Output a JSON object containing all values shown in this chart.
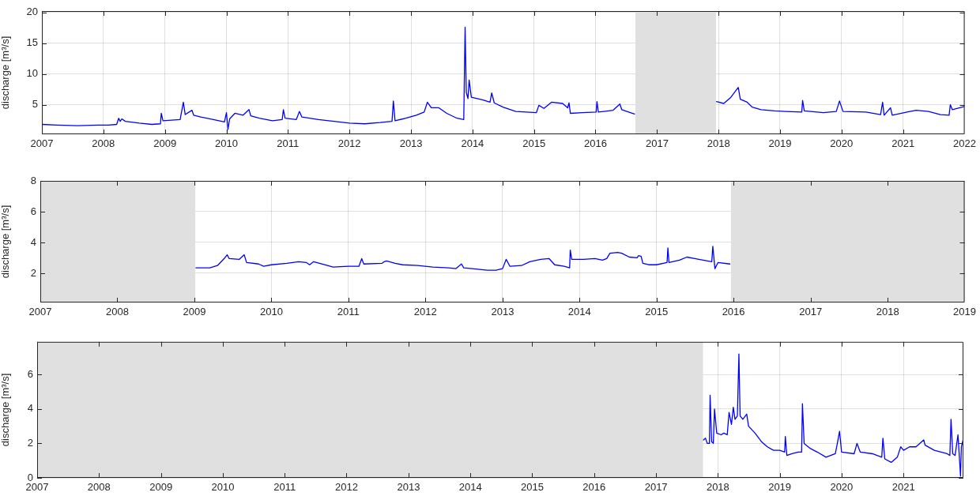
{
  "chart_data": [
    {
      "type": "line",
      "ylabel": "discharge [m³/s]",
      "marker": "none",
      "grid": true,
      "xlim": [
        "2007",
        "2022"
      ],
      "xticks": [
        "2007",
        "2008",
        "2009",
        "2010",
        "2011",
        "2012",
        "2013",
        "2014",
        "2015",
        "2016",
        "2017",
        "2018",
        "2019",
        "2020",
        "2021",
        "2022"
      ],
      "ylim": [
        0.2,
        20.2
      ],
      "yticks": [
        5,
        10,
        15,
        20
      ],
      "bands": [
        {
          "axis": "x",
          "from": "2016-08-25",
          "to": "2017-12-17",
          "color": "#e0e0e0"
        }
      ],
      "x": [
        "2007-01-01",
        "2007-04-01",
        "2007-08-01",
        "2007-12-01",
        "2008-02-01",
        "2008-03-20",
        "2008-04-01",
        "2008-04-10",
        "2008-04-20",
        "2008-05-10",
        "2008-08-01",
        "2008-10-15",
        "2008-12-05",
        "2008-12-10",
        "2008-12-20",
        "2009-04-01",
        "2009-04-20",
        "2009-05-01",
        "2009-06-10",
        "2009-06-20",
        "2009-08-01",
        "2009-10-15",
        "2009-12-20",
        "2010-01-01",
        "2010-01-10",
        "2010-01-20",
        "2010-02-20",
        "2010-04-10",
        "2010-05-15",
        "2010-05-25",
        "2010-07-15",
        "2010-10-01",
        "2010-11-28",
        "2010-12-05",
        "2010-12-15",
        "2011-02-20",
        "2011-03-10",
        "2011-03-25",
        "2011-07-01",
        "2011-10-01",
        "2012-01-01",
        "2012-04-01",
        "2012-07-01",
        "2012-09-10",
        "2012-09-18",
        "2012-09-28",
        "2012-12-01",
        "2013-02-01",
        "2013-03-20",
        "2013-04-08",
        "2013-05-01",
        "2013-06-15",
        "2013-08-01",
        "2013-10-01",
        "2013-11-10",
        "2013-11-18",
        "2013-11-25",
        "2013-12-05",
        "2013-12-12",
        "2013-12-25",
        "2014-03-01",
        "2014-04-15",
        "2014-04-25",
        "2014-05-10",
        "2014-07-01",
        "2014-09-15",
        "2015-01-15",
        "2015-01-30",
        "2015-03-01",
        "2015-04-15",
        "2015-06-20",
        "2015-07-20",
        "2015-07-28",
        "2015-08-05",
        "2015-10-15",
        "2016-01-05",
        "2016-01-10",
        "2016-01-18",
        "2016-04-15",
        "2016-05-25",
        "2016-06-05",
        "2016-08-20",
        "2017-05-01",
        "2017-12-20",
        "2018-02-01",
        "2018-03-15",
        "2018-04-28",
        "2018-05-10",
        "2018-06-20",
        "2018-07-20",
        "2018-09-10",
        "2018-12-01",
        "2019-02-01",
        "2019-05-10",
        "2019-05-15",
        "2019-05-25",
        "2019-09-15",
        "2019-12-01",
        "2019-12-20",
        "2020-01-10",
        "2020-05-25",
        "2020-08-20",
        "2020-09-01",
        "2020-09-10",
        "2020-10-18",
        "2020-10-28",
        "2021-02-10",
        "2021-03-20",
        "2021-06-01",
        "2021-08-10",
        "2021-10-01",
        "2021-10-08",
        "2021-10-20",
        "2021-12-30"
      ],
      "series": [
        {
          "color": "#0000ff",
          "values": [
            1.8,
            1.7,
            1.6,
            1.7,
            1.7,
            1.8,
            2.8,
            2.3,
            2.7,
            2.3,
            2.0,
            1.8,
            1.9,
            3.6,
            2.4,
            2.6,
            5.4,
            3.4,
            4.1,
            3.3,
            3.0,
            2.6,
            2.2,
            3.7,
            1.0,
            2.7,
            3.6,
            3.3,
            4.2,
            3.2,
            2.8,
            2.4,
            2.6,
            4.2,
            2.8,
            2.6,
            3.9,
            3.0,
            2.6,
            2.3,
            2.0,
            1.9,
            2.1,
            2.3,
            5.6,
            2.4,
            2.8,
            3.3,
            3.8,
            5.4,
            4.5,
            4.5,
            3.6,
            2.8,
            2.6,
            17.6,
            7.0,
            6.0,
            9.0,
            6.2,
            5.8,
            5.4,
            6.9,
            5.3,
            4.6,
            3.9,
            3.7,
            4.9,
            4.4,
            5.4,
            5.2,
            4.5,
            5.3,
            3.6,
            3.7,
            3.8,
            5.5,
            3.8,
            4.1,
            5.1,
            4.2,
            3.5,
            null,
            5.5,
            5.2,
            6.2,
            7.8,
            5.9,
            5.4,
            4.6,
            4.2,
            4.0,
            3.9,
            3.8,
            5.7,
            4.0,
            3.7,
            3.9,
            5.6,
            3.9,
            3.8,
            3.4,
            5.4,
            3.3,
            4.5,
            3.3,
            3.9,
            4.1,
            3.9,
            3.4,
            3.3,
            5.0,
            4.2,
            4.7
          ]
        }
      ]
    },
    {
      "type": "line",
      "ylabel": "discharge [m³/s]",
      "marker": "none",
      "grid": true,
      "xlim": [
        "2007",
        "2019"
      ],
      "xticks": [
        "2007",
        "2008",
        "2009",
        "2010",
        "2011",
        "2012",
        "2013",
        "2014",
        "2015",
        "2016",
        "2017",
        "2018",
        "2019"
      ],
      "ylim": [
        0.1,
        8
      ],
      "yticks": [
        2,
        4,
        6,
        8
      ],
      "bands": [
        {
          "axis": "x",
          "from": "2007-01-01",
          "to": "2009-01-05",
          "color": "#e0e0e0"
        },
        {
          "axis": "x",
          "from": "2015-12-20",
          "to": "2019-01-01",
          "color": "#e0e0e0"
        }
      ],
      "x": [
        "2009-01-08",
        "2009-03-15",
        "2009-04-20",
        "2009-05-25",
        "2009-06-05",
        "2009-06-15",
        "2009-08-01",
        "2009-08-25",
        "2009-09-05",
        "2009-11-01",
        "2009-11-25",
        "2010-01-01",
        "2010-03-15",
        "2010-05-10",
        "2010-06-15",
        "2010-07-01",
        "2010-07-20",
        "2010-09-10",
        "2010-10-20",
        "2011-01-01",
        "2011-02-20",
        "2011-03-05",
        "2011-03-15",
        "2011-06-10",
        "2011-06-20",
        "2011-07-01",
        "2011-08-10",
        "2011-09-15",
        "2011-11-25",
        "2012-02-05",
        "2012-04-20",
        "2012-05-25",
        "2012-06-20",
        "2012-07-01",
        "2012-08-10",
        "2012-10-20",
        "2012-12-01",
        "2013-01-01",
        "2013-01-18",
        "2013-02-05",
        "2013-04-01",
        "2013-05-10",
        "2013-07-01",
        "2013-08-10",
        "2013-09-05",
        "2013-10-20",
        "2013-11-15",
        "2013-11-18",
        "2013-11-25",
        "2014-01-20",
        "2014-03-15",
        "2014-04-20",
        "2014-05-10",
        "2014-05-25",
        "2014-07-01",
        "2014-07-20",
        "2014-08-25",
        "2014-10-01",
        "2014-10-08",
        "2014-10-20",
        "2014-10-28",
        "2014-11-25",
        "2015-01-01",
        "2015-02-20",
        "2015-02-24",
        "2015-03-01",
        "2015-04-20",
        "2015-05-25",
        "2015-07-01",
        "2015-08-10",
        "2015-09-20",
        "2015-09-25",
        "2015-10-05",
        "2015-10-20",
        "2015-12-15"
      ],
      "series": [
        {
          "color": "#0000ff",
          "values": [
            2.35,
            2.35,
            2.5,
            3.0,
            3.2,
            2.95,
            2.9,
            3.2,
            2.7,
            2.6,
            2.45,
            2.55,
            2.65,
            2.75,
            2.7,
            2.55,
            2.75,
            2.55,
            2.4,
            2.45,
            2.45,
            2.95,
            2.6,
            2.65,
            2.75,
            2.8,
            2.65,
            2.55,
            2.5,
            2.4,
            2.35,
            2.3,
            2.6,
            2.35,
            2.3,
            2.2,
            2.2,
            2.3,
            2.9,
            2.45,
            2.5,
            2.75,
            2.9,
            2.95,
            2.55,
            2.45,
            2.35,
            3.5,
            2.9,
            2.9,
            2.95,
            2.85,
            2.95,
            3.3,
            3.35,
            3.3,
            3.05,
            3.0,
            3.15,
            3.1,
            2.65,
            2.55,
            2.55,
            2.7,
            3.65,
            2.7,
            2.85,
            3.05,
            2.95,
            2.85,
            2.75,
            3.75,
            2.3,
            2.7,
            2.6
          ]
        }
      ]
    },
    {
      "type": "line",
      "ylabel": "discharge [m³/s]",
      "marker": "none",
      "grid": true,
      "xlim": [
        "2007",
        "2021-12-20"
      ],
      "xticks": [
        "2007",
        "2008",
        "2009",
        "2010",
        "2011",
        "2012",
        "2013",
        "2014",
        "2015",
        "2016",
        "2017",
        "2018",
        "2019",
        "2020",
        "2021"
      ],
      "ylim": [
        0,
        7.9
      ],
      "yticks": [
        0,
        2,
        4,
        6
      ],
      "bands": [
        {
          "axis": "x",
          "from": "2007-01-01",
          "to": "2017-10-05",
          "color": "#e0e0e0"
        }
      ],
      "x": [
        "2017-10-08",
        "2017-10-20",
        "2017-10-30",
        "2017-11-12",
        "2017-11-16",
        "2017-11-25",
        "2017-12-05",
        "2017-12-12",
        "2017-12-25",
        "2018-01-20",
        "2018-02-05",
        "2018-02-25",
        "2018-03-08",
        "2018-03-22",
        "2018-04-02",
        "2018-04-12",
        "2018-04-26",
        "2018-05-05",
        "2018-05-12",
        "2018-05-28",
        "2018-06-20",
        "2018-07-01",
        "2018-08-08",
        "2018-09-15",
        "2018-10-20",
        "2018-11-25",
        "2019-01-01",
        "2019-01-30",
        "2019-02-03",
        "2019-02-12",
        "2019-03-15",
        "2019-04-20",
        "2019-05-10",
        "2019-05-15",
        "2019-05-25",
        "2019-07-01",
        "2019-08-10",
        "2019-10-01",
        "2019-11-25",
        "2019-12-05",
        "2019-12-20",
        "2020-01-01",
        "2020-03-15",
        "2020-04-01",
        "2020-04-20",
        "2020-07-01",
        "2020-08-25",
        "2020-09-01",
        "2020-09-12",
        "2020-10-20",
        "2020-11-25",
        "2020-12-15",
        "2021-01-01",
        "2021-02-05",
        "2021-03-15",
        "2021-04-30",
        "2021-05-08",
        "2021-07-01",
        "2021-08-10",
        "2021-09-15",
        "2021-10-01",
        "2021-10-08",
        "2021-10-18",
        "2021-11-01",
        "2021-11-18",
        "2021-11-25",
        "2021-12-03",
        "2021-12-08",
        "2021-12-18"
      ],
      "series": [
        {
          "color": "#0000ff",
          "values": [
            2.2,
            2.3,
            2.0,
            2.0,
            4.8,
            2.1,
            2.0,
            4.0,
            2.6,
            2.5,
            2.6,
            2.5,
            3.8,
            3.1,
            4.1,
            3.4,
            3.6,
            7.2,
            3.6,
            3.4,
            3.7,
            3.0,
            2.6,
            2.1,
            1.8,
            1.6,
            1.6,
            1.5,
            2.4,
            1.3,
            1.4,
            1.5,
            1.5,
            4.3,
            2.0,
            1.7,
            1.5,
            1.2,
            1.4,
            1.9,
            2.7,
            1.5,
            1.4,
            2.0,
            1.5,
            1.4,
            1.2,
            2.3,
            1.1,
            0.9,
            1.2,
            1.8,
            1.6,
            1.8,
            1.8,
            2.2,
            1.9,
            1.6,
            1.5,
            1.4,
            1.3,
            3.4,
            1.4,
            1.3,
            2.5,
            1.4,
            0.1,
            1.8,
            2.2
          ]
        }
      ]
    }
  ]
}
